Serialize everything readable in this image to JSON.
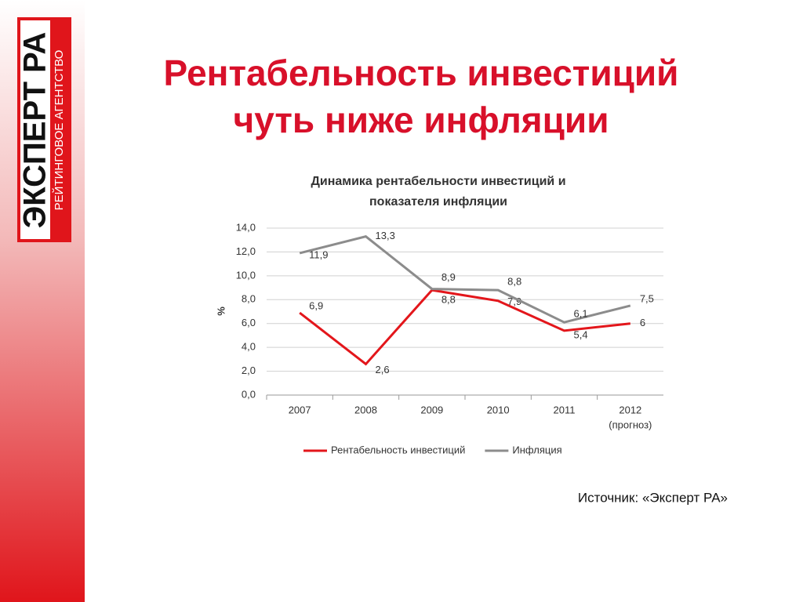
{
  "logo": {
    "name": "ЭКСПЕРТ РА",
    "tagline": "РЕЙТИНГОВОЕ АГЕНТСТВО"
  },
  "slide_title": [
    "Рентабельность инвестиций",
    "чуть ниже инфляции"
  ],
  "source": "Источник: «Эксперт РА»",
  "chart_data": {
    "type": "line",
    "title": [
      "Динамика рентабельности инвестиций и",
      "показателя инфляции"
    ],
    "y_label": "%",
    "categories": [
      "2007",
      "2008",
      "2009",
      "2010",
      "2011",
      "2012"
    ],
    "annotations": [
      {
        "category": 5,
        "text": "(прогноз)"
      }
    ],
    "series": [
      {
        "name": "Рентабельность инвестиций",
        "color": "#e3161b",
        "values": [
          6.9,
          2.6,
          8.8,
          7.9,
          5.4,
          6
        ],
        "value_labels": [
          "6,9",
          "2,6",
          "8,8",
          "7,9",
          "5,4",
          "6"
        ]
      },
      {
        "name": "Инфляция",
        "color": "#8c8c8c",
        "values": [
          11.9,
          13.3,
          8.9,
          8.8,
          6.1,
          7.5
        ],
        "value_labels": [
          "11,9",
          "13,3",
          "8,9",
          "8,8",
          "6,1",
          "7,5"
        ]
      }
    ],
    "ylim": [
      0,
      14
    ],
    "yticks": [
      {
        "value": 0,
        "label": "0,0"
      },
      {
        "value": 2,
        "label": "2,0"
      },
      {
        "value": 4,
        "label": "4,0"
      },
      {
        "value": 6,
        "label": "6,0"
      },
      {
        "value": 8,
        "label": "8,0"
      },
      {
        "value": 10,
        "label": "10,0"
      },
      {
        "value": 12,
        "label": "12,0"
      },
      {
        "value": 14,
        "label": "14,0"
      }
    ],
    "grid": true,
    "legend": "bottom"
  }
}
